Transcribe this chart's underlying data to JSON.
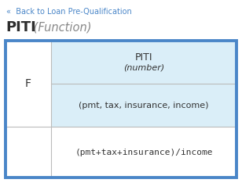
{
  "back_link_text": "«  Back to Loan Pre-Qualification",
  "back_link_color": "#4a86c8",
  "title_bold": "PITI",
  "title_italic": " (Function)",
  "title_bold_color": "#2d2d2d",
  "title_italic_color": "#888888",
  "outer_border_color": "#4a86c8",
  "outer_border_lw": 2.5,
  "inner_border_color": "#bbbbbb",
  "cell_bg_blue": "#daeef8",
  "cell_bg_white": "#ffffff",
  "col1_text": "F",
  "header_line1": "PITI",
  "header_line2": "(number)",
  "params_text": "(pmt, tax, insurance, income)",
  "body_text": "(pmt+tax+insurance)/income",
  "font_color": "#333333",
  "mono_color": "#333333",
  "fig_width": 3.08,
  "fig_height": 2.34,
  "dpi": 100
}
